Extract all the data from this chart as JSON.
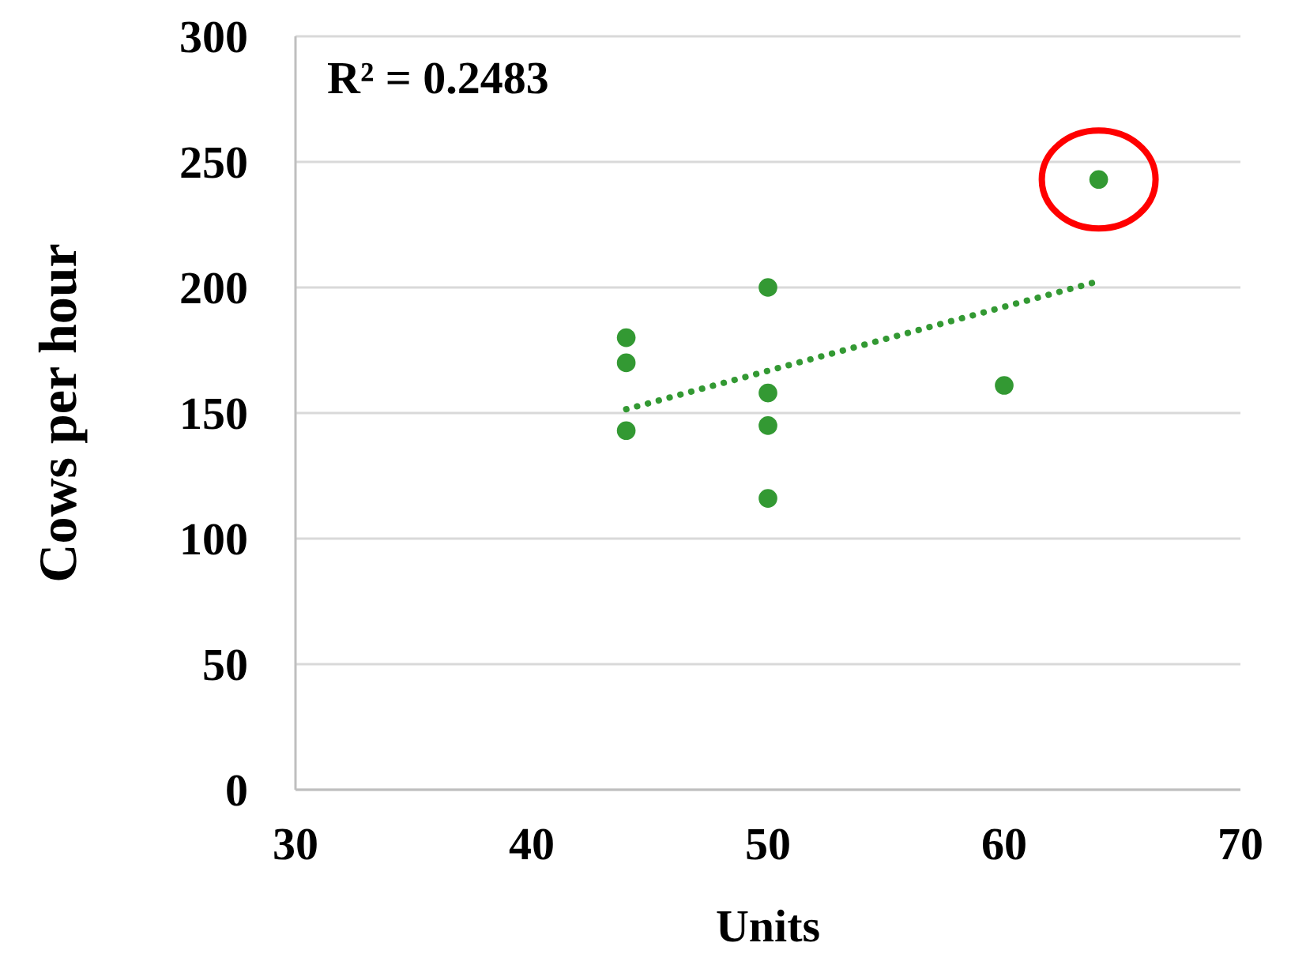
{
  "chart_data": {
    "type": "scatter",
    "xlabel": "Units",
    "ylabel": "Cows per hour",
    "annotations": [
      "R² = 0.2483"
    ],
    "xlim": [
      30,
      70
    ],
    "xticks": [
      30,
      40,
      50,
      60,
      70
    ],
    "ylim": [
      0,
      300
    ],
    "yticks": [
      0,
      50,
      100,
      150,
      200,
      250,
      300
    ],
    "grid": "y",
    "marker": "circle",
    "series": [
      {
        "color": "#339933",
        "x": [
          44,
          44,
          44,
          50,
          50,
          50,
          50,
          60,
          64
        ],
        "values": [
          180,
          170,
          143,
          200,
          158,
          145,
          116,
          161,
          243
        ]
      },
      {
        "type": "line",
        "line_style": "dotted",
        "marker": "none",
        "color": "#339933",
        "x": [
          44,
          64
        ],
        "values": [
          151.5,
          202.5
        ]
      }
    ]
  }
}
